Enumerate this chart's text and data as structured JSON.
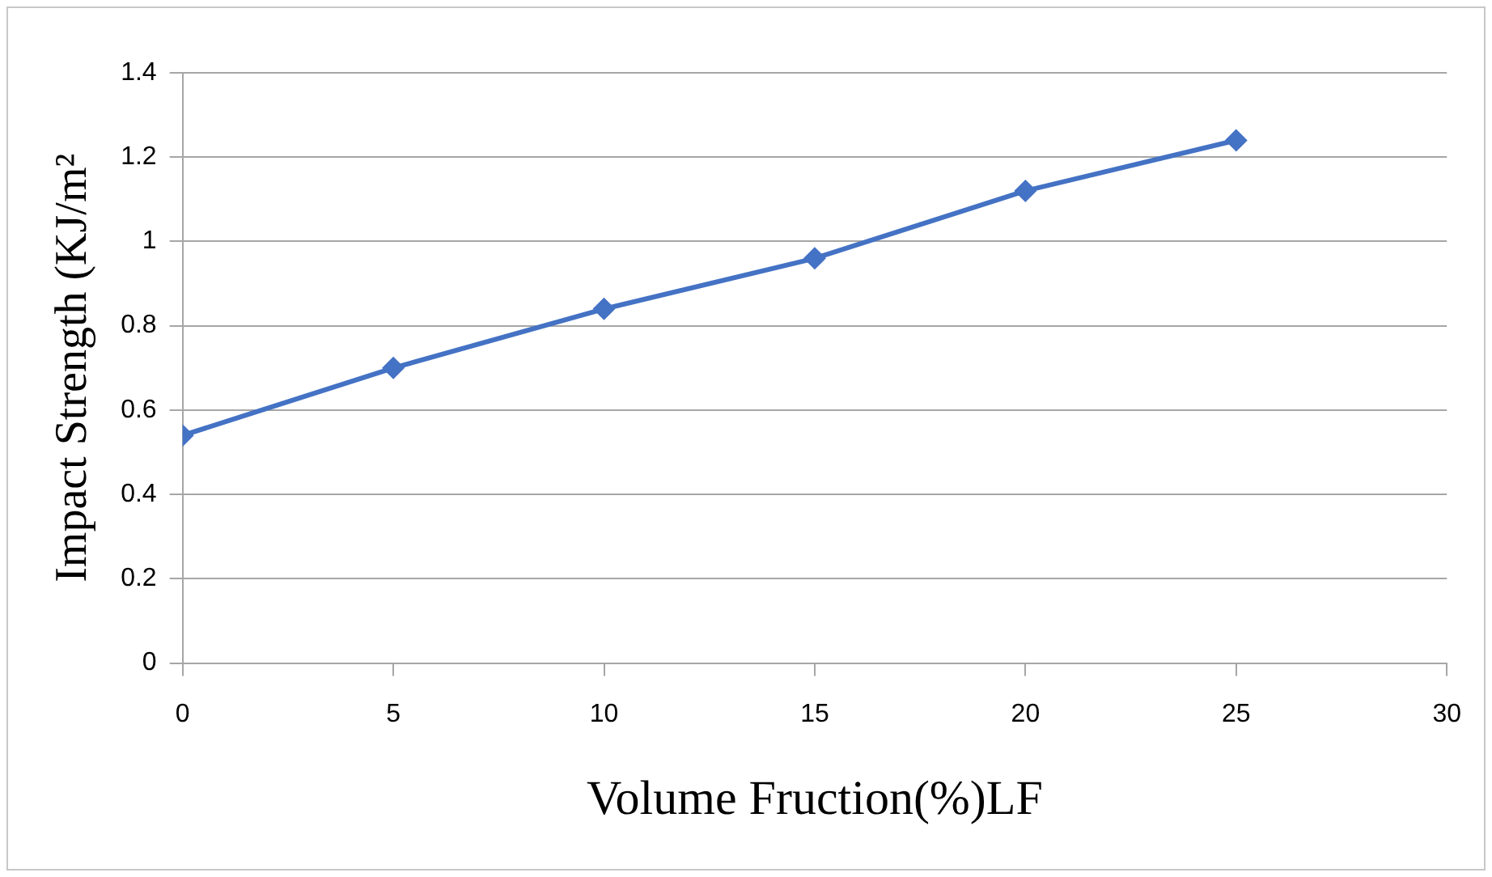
{
  "chart_data": {
    "type": "line",
    "xlabel": "Volume Fruction(%)LF",
    "ylabel": "Impact Strength (KJ/m²",
    "x": [
      0,
      5,
      10,
      15,
      20,
      25
    ],
    "series": [
      {
        "color": "#4472c4",
        "values": [
          0.54,
          0.7,
          0.84,
          0.96,
          1.12,
          1.24
        ]
      }
    ],
    "xlim": [
      0,
      30
    ],
    "xticks": [
      0,
      5,
      10,
      15,
      20,
      25,
      30
    ],
    "ylim": [
      0,
      1.4
    ],
    "yticks": [
      0,
      0.2,
      0.4,
      0.6,
      0.8,
      1,
      1.2,
      1.4
    ],
    "grid": "y",
    "legend": false,
    "marker": "diamond",
    "line_style": "solid"
  }
}
